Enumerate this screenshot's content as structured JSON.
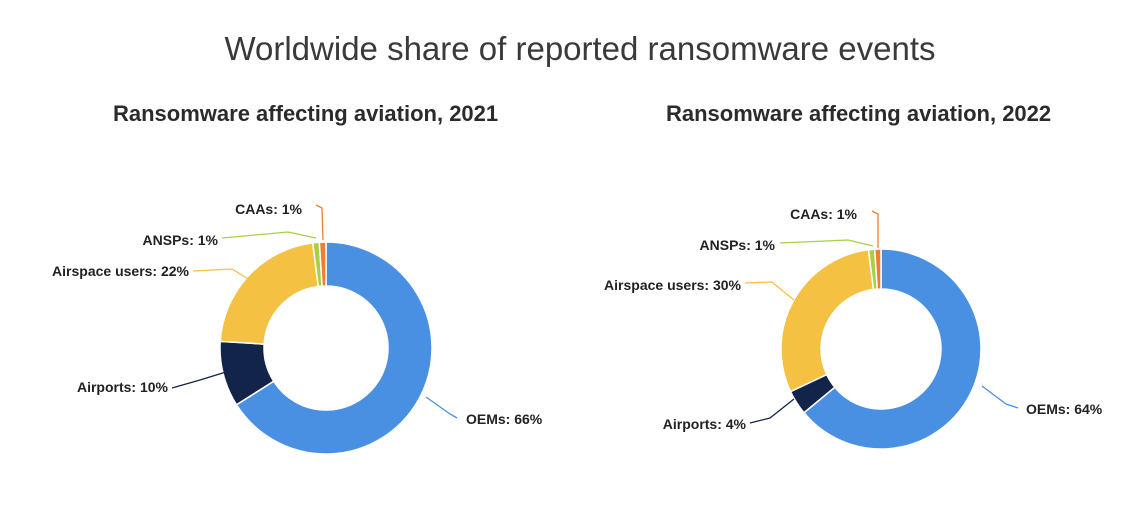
{
  "page_title": "Worldwide share of reported ransomware events",
  "chart_data": [
    {
      "type": "pie",
      "donut": true,
      "title": "Ransomware affecting aviation, 2021",
      "slices": [
        {
          "label": "OEMs: 66%",
          "category": "OEMs",
          "value": 66,
          "color": "#4a90e2"
        },
        {
          "label": "Airports: 10%",
          "category": "Airports",
          "value": 10,
          "color": "#13244a"
        },
        {
          "label": "Airspace users: 22%",
          "category": "Airspace users",
          "value": 22,
          "color": "#f4c142"
        },
        {
          "label": "ANSPs: 1%",
          "category": "ANSPs",
          "value": 1,
          "color": "#a8cf45"
        },
        {
          "label": "CAAs: 1%",
          "category": "CAAs",
          "value": 1,
          "color": "#ef7d32"
        }
      ]
    },
    {
      "type": "pie",
      "donut": true,
      "title": "Ransomware affecting aviation, 2022",
      "slices": [
        {
          "label": "OEMs: 64%",
          "category": "OEMs",
          "value": 64,
          "color": "#4a90e2"
        },
        {
          "label": "Airports: 4%",
          "category": "Airports",
          "value": 4,
          "color": "#13244a"
        },
        {
          "label": "Airspace users: 30%",
          "category": "Airspace users",
          "value": 30,
          "color": "#f4c142"
        },
        {
          "label": "ANSPs: 1%",
          "category": "ANSPs",
          "value": 1,
          "color": "#a8cf45"
        },
        {
          "label": "CAAs: 1%",
          "category": "CAAs",
          "value": 1,
          "color": "#ef7d32"
        }
      ]
    }
  ]
}
